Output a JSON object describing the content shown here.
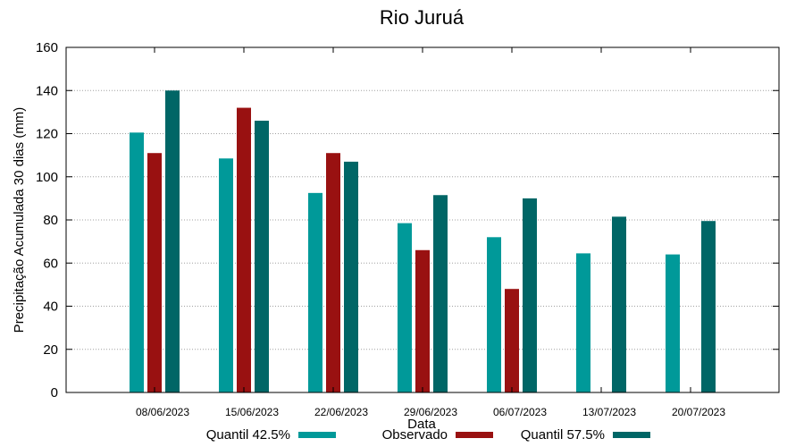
{
  "chart_data": {
    "type": "bar",
    "title": "Rio Juruá",
    "xlabel": "Data",
    "ylabel": "Precipitação Acumulada 30 dias (mm)",
    "ylim": [
      0,
      160
    ],
    "yticks": [
      0,
      20,
      40,
      60,
      80,
      100,
      120,
      140,
      160
    ],
    "categories": [
      "08/06/2023",
      "15/06/2023",
      "22/06/2023",
      "29/06/2023",
      "06/07/2023",
      "13/07/2023",
      "20/07/2023"
    ],
    "grid": true,
    "legend_position": "bottom",
    "series": [
      {
        "name": "Quantil 42.5%",
        "color": "#009999",
        "values": [
          120.5,
          108.5,
          92.5,
          78.5,
          72,
          64.5,
          64
        ]
      },
      {
        "name": "Observado",
        "color": "#991111",
        "values": [
          111,
          132,
          111,
          66,
          48,
          null,
          null
        ]
      },
      {
        "name": "Quantil 57.5%",
        "color": "#006666",
        "values": [
          140,
          126,
          107,
          91.5,
          90,
          81.5,
          79.5
        ]
      }
    ]
  }
}
